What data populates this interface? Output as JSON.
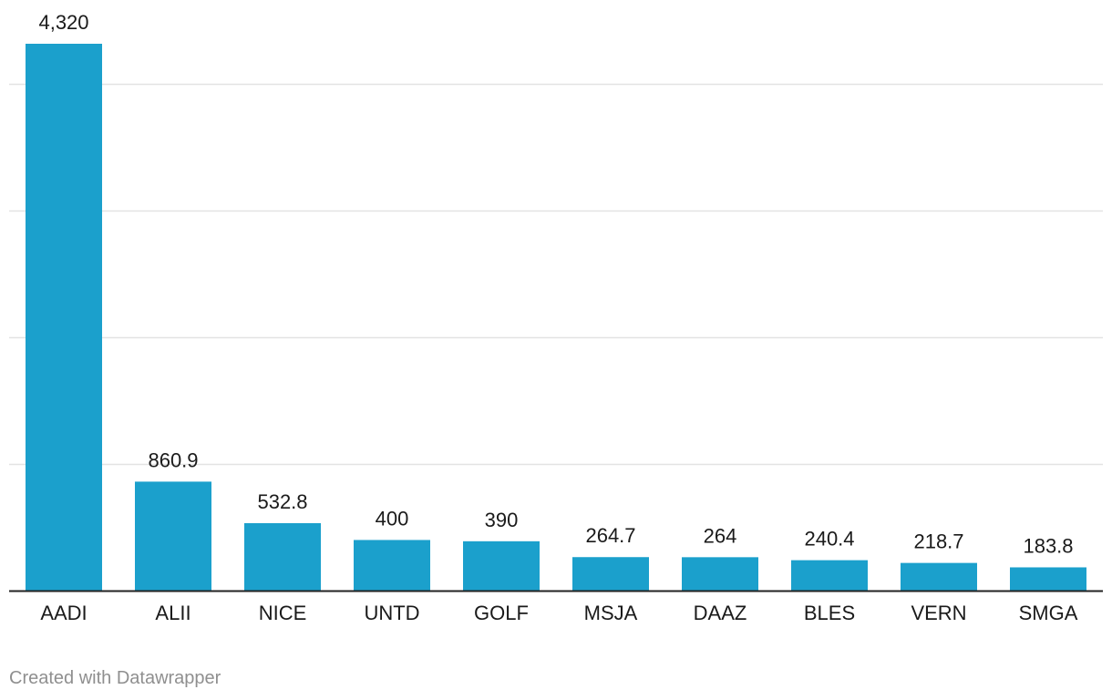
{
  "chart_data": {
    "type": "bar",
    "categories": [
      "AADI",
      "ALII",
      "NICE",
      "UNTD",
      "GOLF",
      "MSJA",
      "DAAZ",
      "BLES",
      "VERN",
      "SMGA"
    ],
    "values": [
      4320,
      860.9,
      532.8,
      400,
      390,
      264.7,
      264,
      240.4,
      218.7,
      183.8
    ],
    "value_labels": [
      "4,320",
      "860.9",
      "532.8",
      "400",
      "390",
      "264.7",
      "264",
      "240.4",
      "218.7",
      "183.8"
    ],
    "ylim": [
      0,
      4320
    ],
    "gridlines": [
      1000,
      2000,
      3000,
      4000
    ],
    "grid": true,
    "y_tick_labels_shown": false,
    "bar_color": "#1ba0cc"
  },
  "footer": {
    "credit": "Created with Datawrapper"
  }
}
